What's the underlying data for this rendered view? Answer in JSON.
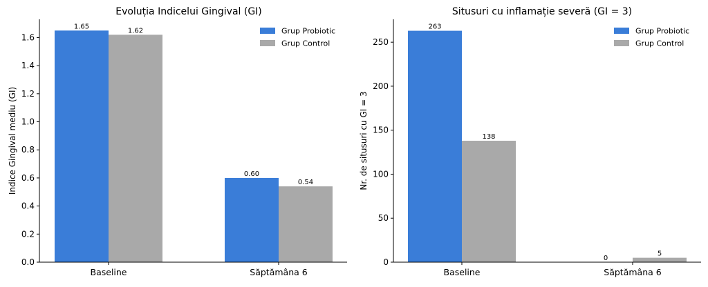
{
  "colors": {
    "probiotic": "#3a7dd8",
    "control": "#a9a9a9"
  },
  "chart_data": [
    {
      "type": "bar",
      "title": "Evoluția Indicelui Gingival (GI)",
      "xlabel": "",
      "ylabel": "Indice Gingival mediu (GI)",
      "categories": [
        "Baseline",
        "Săptămâna 6"
      ],
      "series": [
        {
          "name": "Grup Probiotic",
          "values": [
            1.65,
            0.6
          ],
          "labels": [
            "1.65",
            "0.60"
          ]
        },
        {
          "name": "Grup Control",
          "values": [
            1.62,
            0.54
          ],
          "labels": [
            "1.62",
            "0.54"
          ]
        }
      ],
      "ylim": [
        0,
        1.73
      ],
      "yticks": [
        0.0,
        0.2,
        0.4,
        0.6,
        0.8,
        1.0,
        1.2,
        1.4,
        1.6
      ],
      "ytick_labels": [
        "0.0",
        "0.2",
        "0.4",
        "0.6",
        "0.8",
        "1.0",
        "1.2",
        "1.4",
        "1.6"
      ],
      "legend": "top-right",
      "grid": false
    },
    {
      "type": "bar",
      "title": "Situsuri cu inflamație severă (GI = 3)",
      "xlabel": "",
      "ylabel": "Nr. de situsuri cu GI = 3",
      "categories": [
        "Baseline",
        "Săptămâna 6"
      ],
      "series": [
        {
          "name": "Grup Probiotic",
          "values": [
            263,
            0
          ],
          "labels": [
            "263",
            "0"
          ]
        },
        {
          "name": "Grup Control",
          "values": [
            138,
            5
          ],
          "labels": [
            "138",
            "5"
          ]
        }
      ],
      "ylim": [
        0,
        276
      ],
      "yticks": [
        0,
        50,
        100,
        150,
        200,
        250
      ],
      "ytick_labels": [
        "0",
        "50",
        "100",
        "150",
        "200",
        "250"
      ],
      "legend": "top-right",
      "grid": false
    }
  ]
}
